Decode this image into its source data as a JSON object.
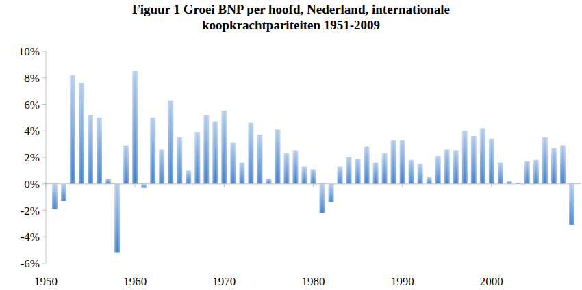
{
  "chart_data": {
    "type": "bar",
    "title": "Figuur 1 Groei BNP per hoofd, Nederland, internationale koopkrachtpariteiten 1951-2009",
    "x": [
      1951,
      1952,
      1953,
      1954,
      1955,
      1956,
      1957,
      1958,
      1959,
      1960,
      1961,
      1962,
      1963,
      1964,
      1965,
      1966,
      1967,
      1968,
      1969,
      1970,
      1971,
      1972,
      1973,
      1974,
      1975,
      1976,
      1977,
      1978,
      1979,
      1980,
      1981,
      1982,
      1983,
      1984,
      1985,
      1986,
      1987,
      1988,
      1989,
      1990,
      1991,
      1992,
      1993,
      1994,
      1995,
      1996,
      1997,
      1998,
      1999,
      2000,
      2001,
      2002,
      2003,
      2004,
      2005,
      2006,
      2007,
      2008,
      2009
    ],
    "values": [
      -1.9,
      -1.3,
      8.2,
      7.6,
      5.2,
      5.0,
      0.4,
      -5.2,
      2.9,
      8.5,
      -0.3,
      5.0,
      2.6,
      6.3,
      3.5,
      1.0,
      3.9,
      5.2,
      4.7,
      5.5,
      3.1,
      1.6,
      4.6,
      3.7,
      0.4,
      4.1,
      2.3,
      2.5,
      1.3,
      1.1,
      -2.2,
      -1.4,
      1.3,
      2.0,
      1.9,
      2.8,
      1.6,
      2.3,
      3.3,
      3.3,
      1.8,
      1.5,
      0.5,
      2.1,
      2.6,
      2.5,
      4.0,
      3.6,
      4.2,
      3.4,
      1.6,
      0.2,
      0.1,
      1.7,
      1.8,
      3.5,
      2.7,
      2.9,
      -3.1
    ],
    "color": "#3d7cc9",
    "xlim": [
      1950,
      2010
    ],
    "xticks": [
      1950,
      1960,
      1970,
      1980,
      1990,
      2000
    ],
    "ylim": [
      -6,
      10
    ],
    "yticks": [
      {
        "value": -6,
        "label": "-6%"
      },
      {
        "value": -4,
        "label": "-4%"
      },
      {
        "value": -2,
        "label": "-2%"
      },
      {
        "value": 0,
        "label": "0%"
      },
      {
        "value": 2,
        "label": "2%"
      },
      {
        "value": 4,
        "label": "4%"
      },
      {
        "value": 6,
        "label": "6%"
      },
      {
        "value": 8,
        "label": "8%"
      },
      {
        "value": 10,
        "label": "10%"
      }
    ],
    "grid": false
  }
}
